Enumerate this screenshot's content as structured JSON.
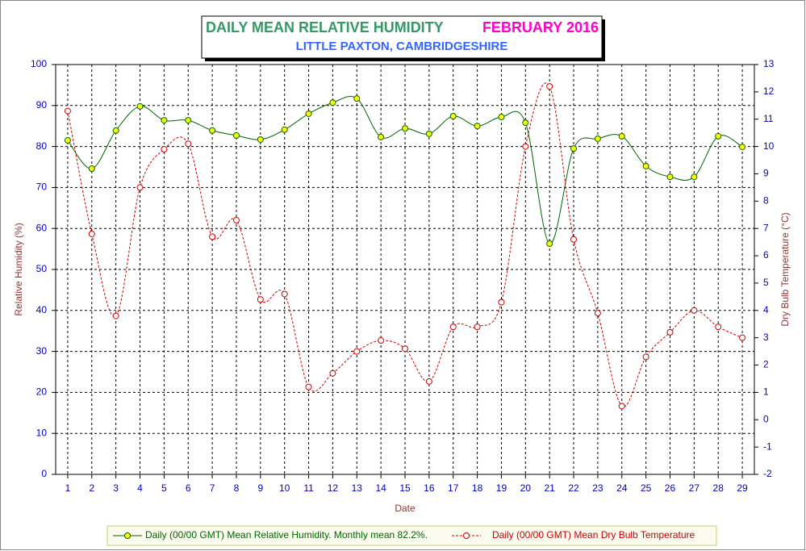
{
  "chart_data": {
    "type": "line",
    "title": "DAILY MEAN RELATIVE HUMIDITY",
    "title_period": "FEBRUARY 2016",
    "subtitle": "LITTLE PAXTON, CAMBRIDGESHIRE",
    "xlabel": "Date",
    "ylabel": "Relative Humidity (%)",
    "y2label": "Dry Bulb Temperature (°C)",
    "categories": [
      "1",
      "2",
      "3",
      "4",
      "5",
      "6",
      "7",
      "8",
      "9",
      "10",
      "11",
      "12",
      "13",
      "14",
      "15",
      "16",
      "17",
      "18",
      "19",
      "20",
      "21",
      "22",
      "23",
      "24",
      "25",
      "26",
      "27",
      "28",
      "29"
    ],
    "series": [
      {
        "name": "Daily (00/00 GMT) Mean Relative Humidity. Monthly mean 82.2%.",
        "color": "#006600",
        "marker_color": "#ffff00",
        "axis": "y",
        "values": [
          81.5,
          74.6,
          83.9,
          89.8,
          86.4,
          86.4,
          83.9,
          82.7,
          81.7,
          84.1,
          88.0,
          90.7,
          91.7,
          82.3,
          84.4,
          83.1,
          87.4,
          85.0,
          87.2,
          85.8,
          56.3,
          79.5,
          81.9,
          82.5,
          75.2,
          72.6,
          72.6,
          82.5,
          79.9
        ]
      },
      {
        "name": "Daily (00/00 GMT) Mean Dry Bulb Temperature",
        "color": "#cc0000",
        "marker_color": "#ffffff",
        "axis": "y2",
        "values": [
          11.3,
          6.8,
          3.8,
          8.5,
          9.9,
          10.1,
          6.7,
          7.3,
          4.4,
          4.6,
          1.2,
          1.7,
          2.5,
          2.9,
          2.6,
          1.4,
          3.4,
          3.4,
          4.3,
          10.0,
          12.2,
          6.6,
          3.9,
          0.5,
          2.3,
          3.2,
          4.0,
          3.4,
          3.0
        ]
      }
    ],
    "ylim": [
      0,
      100
    ],
    "yticks": [
      0,
      10,
      20,
      30,
      40,
      50,
      60,
      70,
      80,
      90,
      100
    ],
    "y2lim": [
      -2,
      13
    ],
    "y2ticks": [
      -2,
      -1,
      0,
      1,
      2,
      3,
      4,
      5,
      6,
      7,
      8,
      9,
      10,
      11,
      12,
      13
    ],
    "grid": true
  }
}
